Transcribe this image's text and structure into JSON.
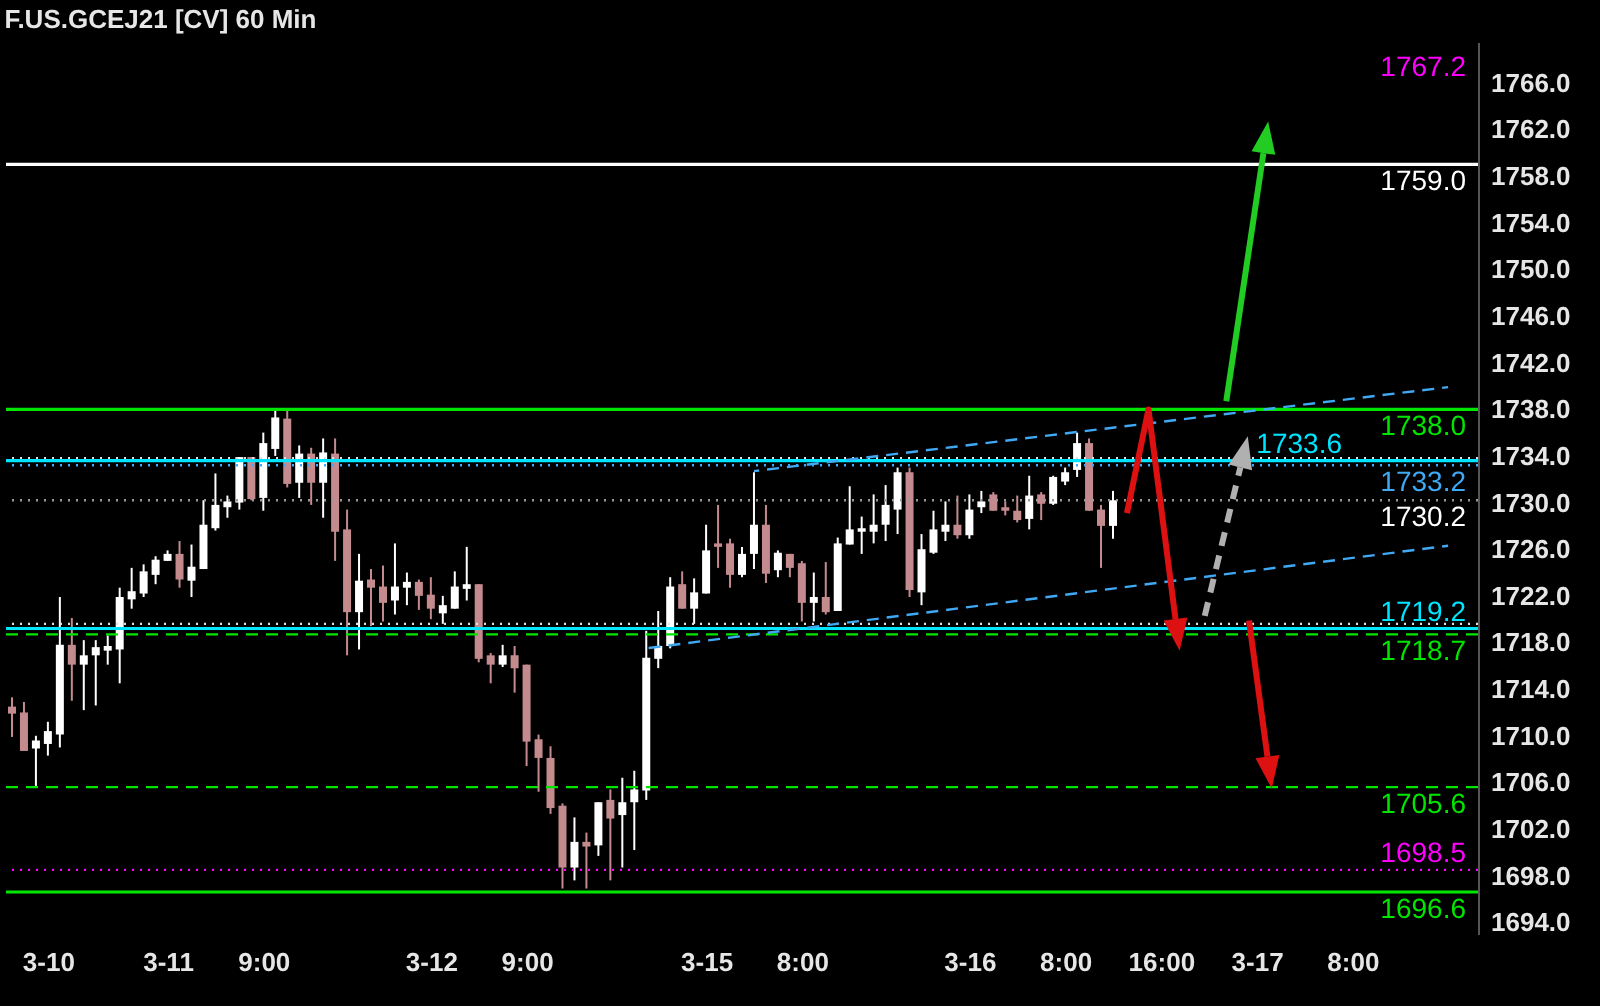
{
  "chart_data": {
    "type": "candlestick",
    "title": "F.US.GCEJ21 [CV] 60 Min",
    "annotations": [
      "1767.2"
    ],
    "categories": [
      null,
      null,
      null,
      "3-10",
      null,
      null,
      null,
      null,
      null,
      null,
      null,
      null,
      null,
      "3-11",
      null,
      null,
      null,
      null,
      null,
      null,
      null,
      "9:00",
      null,
      null,
      null,
      null,
      null,
      null,
      null,
      null,
      null,
      null,
      null,
      null,
      null,
      "3-12",
      null,
      null,
      null,
      null,
      null,
      null,
      null,
      "9:00",
      null,
      null,
      null,
      null,
      null,
      null,
      null,
      null,
      null,
      null,
      null,
      null,
      null,
      null,
      "3-15",
      null,
      null,
      null,
      null,
      null,
      null,
      null,
      "8:00",
      null,
      null,
      null,
      null,
      null,
      null,
      null,
      null,
      null,
      null,
      null,
      null,
      null,
      "3-16",
      null,
      null,
      null,
      null,
      null,
      null,
      null,
      "8:00",
      null,
      null,
      null,
      null,
      null,
      null,
      null,
      "16:00",
      null,
      null,
      null,
      null,
      null,
      null,
      null,
      "3-17",
      null,
      null,
      null,
      null,
      null,
      null,
      null,
      "8:00",
      null,
      null,
      null,
      null,
      null,
      null,
      null,
      null,
      null,
      null
    ],
    "ohlc": [
      [
        1712.5,
        1713.3,
        1709.9,
        1711.9
      ],
      [
        1712.0,
        1712.9,
        1708.7,
        1708.7
      ],
      [
        1708.9,
        1710.0,
        1705.7,
        1709.6
      ],
      [
        1709.3,
        1711.2,
        1708.3,
        1710.4
      ],
      [
        1710.1,
        1721.9,
        1709.0,
        1717.8
      ],
      [
        1717.8,
        1720.1,
        1713.0,
        1716.1
      ],
      [
        1716.1,
        1718.2,
        1712.2,
        1716.9
      ],
      [
        1716.9,
        1718.2,
        1712.6,
        1717.6
      ],
      [
        1717.3,
        1718.6,
        1716.1,
        1717.7
      ],
      [
        1717.4,
        1722.7,
        1714.5,
        1721.9
      ],
      [
        1721.7,
        1724.4,
        1720.9,
        1722.4
      ],
      [
        1722.2,
        1724.7,
        1721.9,
        1724.1
      ],
      [
        1723.8,
        1725.4,
        1723.0,
        1725.1
      ],
      [
        1725.0,
        1725.9,
        1725.0,
        1725.6
      ],
      [
        1725.6,
        1726.7,
        1722.7,
        1723.4
      ],
      [
        1723.3,
        1726.4,
        1721.9,
        1724.5
      ],
      [
        1724.3,
        1730.2,
        1724.3,
        1728.1
      ],
      [
        1727.8,
        1732.5,
        1727.6,
        1729.8
      ],
      [
        1729.6,
        1730.6,
        1728.7,
        1730.1
      ],
      [
        1730.0,
        1733.9,
        1729.4,
        1733.9
      ],
      [
        1733.9,
        1733.9,
        1730.2,
        1730.3
      ],
      [
        1730.4,
        1736.0,
        1729.3,
        1735.1
      ],
      [
        1734.6,
        1738.0,
        1734.0,
        1737.3
      ],
      [
        1737.2,
        1738.0,
        1731.3,
        1731.6
      ],
      [
        1731.7,
        1734.9,
        1730.4,
        1734.2
      ],
      [
        1734.2,
        1734.7,
        1729.8,
        1731.7
      ],
      [
        1731.7,
        1735.5,
        1728.7,
        1734.3
      ],
      [
        1734.2,
        1735.5,
        1725.0,
        1727.5
      ],
      [
        1727.7,
        1729.4,
        1716.9,
        1720.6
      ],
      [
        1720.6,
        1725.6,
        1717.4,
        1723.3
      ],
      [
        1723.4,
        1724.3,
        1719.4,
        1722.7
      ],
      [
        1722.8,
        1724.6,
        1719.8,
        1721.4
      ],
      [
        1721.6,
        1726.5,
        1720.4,
        1722.8
      ],
      [
        1722.7,
        1724.0,
        1721.2,
        1723.2
      ],
      [
        1723.2,
        1723.4,
        1720.8,
        1722.0
      ],
      [
        1722.1,
        1723.6,
        1720.0,
        1720.9
      ],
      [
        1720.5,
        1722.0,
        1719.6,
        1721.2
      ],
      [
        1720.9,
        1724.1,
        1720.9,
        1722.8
      ],
      [
        1722.6,
        1726.2,
        1721.6,
        1723.0
      ],
      [
        1723.0,
        1723.0,
        1716.3,
        1716.6
      ],
      [
        1716.9,
        1717.1,
        1714.5,
        1716.1
      ],
      [
        1716.1,
        1717.8,
        1715.9,
        1716.9
      ],
      [
        1716.9,
        1717.7,
        1713.7,
        1715.8
      ],
      [
        1716.1,
        1716.1,
        1707.4,
        1709.5
      ],
      [
        1709.7,
        1710.1,
        1705.2,
        1708.1
      ],
      [
        1708.1,
        1709.1,
        1703.3,
        1703.8
      ],
      [
        1704.0,
        1704.2,
        1696.9,
        1698.7
      ],
      [
        1698.7,
        1703.0,
        1697.6,
        1700.9
      ],
      [
        1700.9,
        1701.7,
        1696.9,
        1700.5
      ],
      [
        1700.6,
        1704.3,
        1699.7,
        1704.3
      ],
      [
        1704.5,
        1705.4,
        1697.6,
        1702.9
      ],
      [
        1703.2,
        1706.4,
        1698.7,
        1704.3
      ],
      [
        1704.3,
        1707.0,
        1700.2,
        1705.4
      ],
      [
        1705.3,
        1719.0,
        1704.5,
        1716.7
      ],
      [
        1716.6,
        1720.7,
        1715.8,
        1717.7
      ],
      [
        1717.7,
        1723.6,
        1717.5,
        1722.8
      ],
      [
        1723.0,
        1724.1,
        1720.9,
        1720.9
      ],
      [
        1720.9,
        1723.5,
        1719.6,
        1722.3
      ],
      [
        1722.2,
        1728.1,
        1722.2,
        1725.9
      ],
      [
        1726.5,
        1729.8,
        1724.4,
        1726.2
      ],
      [
        1726.5,
        1726.9,
        1722.7,
        1723.8
      ],
      [
        1723.8,
        1726.2,
        1723.6,
        1725.6
      ],
      [
        1725.6,
        1732.6,
        1724.3,
        1728.1
      ],
      [
        1728.1,
        1729.8,
        1723.1,
        1723.9
      ],
      [
        1724.2,
        1725.9,
        1723.6,
        1725.7
      ],
      [
        1725.6,
        1725.6,
        1723.6,
        1724.4
      ],
      [
        1724.8,
        1725.0,
        1719.8,
        1721.4
      ],
      [
        1721.4,
        1724.0,
        1719.8,
        1721.9
      ],
      [
        1721.9,
        1724.9,
        1720.4,
        1720.6
      ],
      [
        1720.7,
        1727.0,
        1720.7,
        1726.5
      ],
      [
        1726.4,
        1731.4,
        1726.4,
        1727.7
      ],
      [
        1727.5,
        1728.8,
        1725.6,
        1727.8
      ],
      [
        1727.5,
        1730.7,
        1726.5,
        1728.1
      ],
      [
        1728.1,
        1731.5,
        1726.7,
        1729.8
      ],
      [
        1729.4,
        1733.0,
        1727.3,
        1732.6
      ],
      [
        1732.6,
        1733.0,
        1721.9,
        1722.5
      ],
      [
        1722.3,
        1727.3,
        1721.2,
        1726.0
      ],
      [
        1725.7,
        1729.3,
        1725.6,
        1727.7
      ],
      [
        1727.5,
        1730.1,
        1726.7,
        1728.1
      ],
      [
        1728.1,
        1730.6,
        1726.9,
        1727.2
      ],
      [
        1727.2,
        1730.7,
        1726.9,
        1729.4
      ],
      [
        1729.6,
        1731.0,
        1729.1,
        1730.1
      ],
      [
        1730.7,
        1730.9,
        1729.3,
        1729.3
      ],
      [
        1729.6,
        1730.1,
        1728.9,
        1729.3
      ],
      [
        1729.3,
        1730.6,
        1728.3,
        1728.5
      ],
      [
        1728.6,
        1732.3,
        1727.7,
        1730.6
      ],
      [
        1730.7,
        1730.9,
        1728.5,
        1729.9
      ],
      [
        1729.9,
        1732.3,
        1729.8,
        1732.2
      ],
      [
        1731.8,
        1733.0,
        1731.5,
        1732.6
      ],
      [
        1732.8,
        1736.0,
        1732.2,
        1735.1
      ],
      [
        1735.1,
        1735.5,
        1729.3,
        1729.3
      ],
      [
        1729.4,
        1729.8,
        1724.4,
        1728.0
      ],
      [
        1728.0,
        1731.0,
        1726.9,
        1730.2
      ],
      null,
      null,
      null,
      null,
      null,
      null,
      null,
      null,
      null,
      null,
      null,
      null,
      null,
      null,
      null,
      null,
      null,
      null,
      null,
      null,
      null,
      null,
      null,
      null,
      null,
      null,
      null,
      null,
      null,
      null
    ],
    "colors": [
      "#c48b8f",
      "#c48b8f",
      "#ffffff",
      "#ffffff",
      "#ffffff",
      "#c48b8f",
      "#ffffff",
      "#ffffff",
      "#ffffff",
      "#ffffff",
      "#ffffff",
      "#ffffff",
      "#ffffff",
      "#ffffff",
      "#c48b8f",
      "#ffffff",
      "#ffffff",
      "#ffffff",
      "#ffffff",
      "#ffffff",
      "#c48b8f",
      "#ffffff",
      "#ffffff",
      "#c48b8f",
      "#ffffff",
      "#c48b8f",
      "#ffffff",
      "#c48b8f",
      "#c48b8f",
      "#ffffff",
      "#c48b8f",
      "#c48b8f",
      "#ffffff",
      "#ffffff",
      "#c48b8f",
      "#c48b8f",
      "#ffffff",
      "#ffffff",
      "#ffffff",
      "#c48b8f",
      "#c48b8f",
      "#ffffff",
      "#c48b8f",
      "#c48b8f",
      "#c48b8f",
      "#c48b8f",
      "#c48b8f",
      "#ffffff",
      "#c48b8f",
      "#ffffff",
      "#c48b8f",
      "#ffffff",
      "#ffffff",
      "#ffffff",
      "#ffffff",
      "#ffffff",
      "#c48b8f",
      "#ffffff",
      "#ffffff",
      "#c48b8f",
      "#c48b8f",
      "#ffffff",
      "#ffffff",
      "#c48b8f",
      "#ffffff",
      "#c48b8f",
      "#c48b8f",
      "#ffffff",
      "#c48b8f",
      "#ffffff",
      "#ffffff",
      "#ffffff",
      "#ffffff",
      "#ffffff",
      "#ffffff",
      "#c48b8f",
      "#ffffff",
      "#ffffff",
      "#ffffff",
      "#c48b8f",
      "#ffffff",
      "#ffffff",
      "#c48b8f",
      "#c48b8f",
      "#c48b8f",
      "#ffffff",
      "#c48b8f",
      "#ffffff",
      "#ffffff",
      "#ffffff",
      "#c48b8f",
      "#c48b8f",
      "#ffffff",
      null,
      null,
      null,
      null,
      null,
      null,
      null,
      null,
      null,
      null,
      null,
      null,
      null,
      null,
      null,
      null,
      null,
      null,
      null,
      null,
      null,
      null,
      null,
      null,
      null,
      null,
      null,
      null,
      null,
      null
    ],
    "series": [
      {
        "type": "line",
        "color": "#3fa9f5",
        "line_style": "dashed",
        "values": [
          null,
          null,
          null,
          null,
          null,
          null,
          null,
          null,
          null,
          null,
          null,
          null,
          null,
          null,
          null,
          null,
          null,
          null,
          null,
          null,
          null,
          null,
          null,
          null,
          null,
          null,
          null,
          null,
          null,
          null,
          null,
          null,
          null,
          null,
          null,
          null,
          null,
          null,
          null,
          null,
          null,
          null,
          null,
          null,
          null,
          null,
          null,
          null,
          null,
          null,
          null,
          null,
          null,
          1717.5,
          null,
          null,
          null,
          null,
          null,
          null,
          null,
          null,
          null,
          null,
          null,
          null,
          null,
          null,
          null,
          null,
          null,
          null,
          null,
          null,
          null,
          null,
          null,
          null,
          null,
          null,
          null,
          null,
          null,
          null,
          null,
          null,
          null,
          null,
          null,
          null,
          null,
          null,
          null,
          null,
          null,
          null,
          null,
          null,
          null,
          null,
          null,
          null,
          null,
          null,
          null,
          null,
          null,
          null,
          null,
          null,
          null,
          null,
          null,
          null,
          null,
          null,
          null,
          null,
          null,
          null,
          1726.3,
          null,
          null
        ]
      },
      {
        "type": "line",
        "color": "#3fa9f5",
        "line_style": "dashed",
        "values": [
          null,
          null,
          null,
          null,
          null,
          null,
          null,
          null,
          null,
          null,
          null,
          null,
          null,
          null,
          null,
          null,
          null,
          null,
          null,
          null,
          null,
          null,
          null,
          null,
          null,
          null,
          null,
          null,
          null,
          null,
          null,
          null,
          null,
          null,
          null,
          null,
          null,
          null,
          null,
          null,
          null,
          null,
          null,
          null,
          null,
          null,
          null,
          null,
          null,
          null,
          null,
          null,
          null,
          null,
          null,
          null,
          null,
          null,
          null,
          null,
          null,
          null,
          1732.7,
          null,
          null,
          null,
          null,
          null,
          null,
          null,
          null,
          null,
          null,
          null,
          null,
          null,
          null,
          null,
          null,
          null,
          null,
          null,
          null,
          null,
          null,
          null,
          null,
          null,
          null,
          null,
          null,
          null,
          null,
          null,
          null,
          null,
          null,
          null,
          null,
          null,
          null,
          null,
          null,
          null,
          null,
          null,
          null,
          null,
          null,
          null,
          null,
          null,
          null,
          null,
          null,
          null,
          null,
          null,
          null,
          null,
          1739.9,
          null,
          null
        ]
      }
    ],
    "ylim": [
      1693,
      1769.5
    ],
    "yticks": [
      {
        "value": 1694,
        "label": "1694.0"
      },
      {
        "value": 1698,
        "label": "1698.0"
      },
      {
        "value": 1702,
        "label": "1702.0"
      },
      {
        "value": 1706,
        "label": "1706.0"
      },
      {
        "value": 1710,
        "label": "1710.0"
      },
      {
        "value": 1714,
        "label": "1714.0"
      },
      {
        "value": 1718,
        "label": "1718.0"
      },
      {
        "value": 1722,
        "label": "1722.0"
      },
      {
        "value": 1726,
        "label": "1726.0"
      },
      {
        "value": 1730,
        "label": "1730.0"
      },
      {
        "value": 1734,
        "label": "1734.0"
      },
      {
        "value": 1738,
        "label": "1738.0"
      },
      {
        "value": 1742,
        "label": "1742.0"
      },
      {
        "value": 1746,
        "label": "1746.0"
      },
      {
        "value": 1750,
        "label": "1750.0"
      },
      {
        "value": 1754,
        "label": "1754.0"
      },
      {
        "value": 1758,
        "label": "1758.0"
      },
      {
        "value": 1762,
        "label": "1762.0"
      },
      {
        "value": 1766,
        "label": "1766.0"
      }
    ],
    "ref_lines": [
      {
        "axis": "y",
        "value": 1759.0,
        "label": "1759.0",
        "color": "#ffffff",
        "line_style": "solid"
      },
      {
        "axis": "y",
        "value": 1738.0,
        "label": "1738.0",
        "color": "#00e600",
        "line_style": "solid"
      },
      {
        "axis": "y",
        "value": 1733.8,
        "label": null,
        "color": "#e0e0e0",
        "line_style": "dotted"
      },
      {
        "axis": "y",
        "value": 1733.6,
        "label": "1733.6",
        "color": "#00e5ff",
        "line_style": "solid"
      },
      {
        "axis": "y",
        "value": 1733.2,
        "label": "1733.2",
        "color": "#3fa9f5",
        "line_style": "dotted"
      },
      {
        "axis": "y",
        "value": 1730.2,
        "label": "1730.2",
        "color": "#9a9a9a",
        "line_style": "dotted"
      },
      {
        "axis": "y",
        "value": 1719.6,
        "label": null,
        "color": "#e0e0e0",
        "line_style": "dotted"
      },
      {
        "axis": "y",
        "value": 1719.2,
        "label": "1719.2",
        "color": "#00e5ff",
        "line_style": "solid"
      },
      {
        "axis": "y",
        "value": 1718.7,
        "label": "1718.7",
        "color": "#00e600",
        "line_style": "dashed"
      },
      {
        "axis": "y",
        "value": 1705.6,
        "label": "1705.6",
        "color": "#00e600",
        "line_style": "dashed"
      },
      {
        "axis": "y",
        "value": 1698.5,
        "label": "1698.5",
        "color": "#ff00ff",
        "line_style": "dotted"
      },
      {
        "axis": "y",
        "value": 1696.6,
        "label": "1696.6",
        "color": "#00e600",
        "line_style": "solid"
      }
    ]
  }
}
